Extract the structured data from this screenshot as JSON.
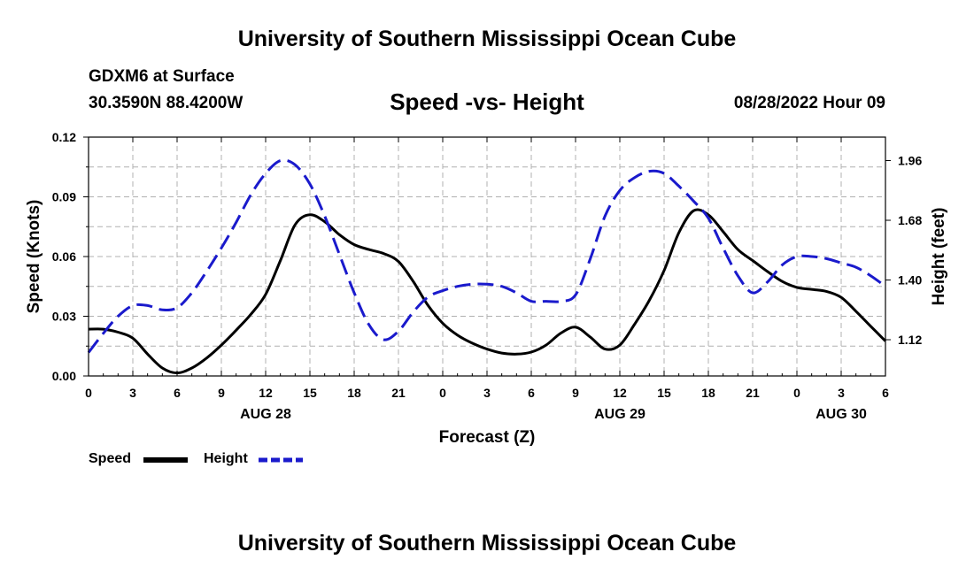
{
  "header": {
    "title": "University of Southern Mississippi Ocean Cube",
    "station": "GDXM6 at Surface",
    "coords": "30.3590N   88.4200W",
    "chart_title": "Speed -vs- Height",
    "datetime": "08/28/2022 Hour 09"
  },
  "footer": {
    "title": "University of Southern Mississippi Ocean Cube"
  },
  "legend": {
    "speed": "Speed",
    "height": "Height"
  },
  "colors": {
    "speed": "#000000",
    "height": "#1a1acc",
    "grid": "#b0b0b0"
  },
  "chart_data": {
    "type": "line",
    "title": "Speed -vs- Height",
    "xlabel": "Forecast (Z)",
    "ylabel": "Speed (Knots)",
    "y2label": "Height (feet)",
    "x_range_hours": [
      0,
      54
    ],
    "x_ticks": [
      {
        "h": 0,
        "label": "0"
      },
      {
        "h": 3,
        "label": "3"
      },
      {
        "h": 6,
        "label": "6"
      },
      {
        "h": 9,
        "label": "9"
      },
      {
        "h": 12,
        "label": "12"
      },
      {
        "h": 15,
        "label": "15"
      },
      {
        "h": 18,
        "label": "18"
      },
      {
        "h": 21,
        "label": "21"
      },
      {
        "h": 24,
        "label": "0"
      },
      {
        "h": 27,
        "label": "3"
      },
      {
        "h": 30,
        "label": "6"
      },
      {
        "h": 33,
        "label": "9"
      },
      {
        "h": 36,
        "label": "12"
      },
      {
        "h": 39,
        "label": "15"
      },
      {
        "h": 42,
        "label": "18"
      },
      {
        "h": 45,
        "label": "21"
      },
      {
        "h": 48,
        "label": "0"
      },
      {
        "h": 51,
        "label": "3"
      },
      {
        "h": 54,
        "label": "6"
      }
    ],
    "day_labels": [
      {
        "h": 12,
        "label": "AUG 28"
      },
      {
        "h": 36,
        "label": "AUG 29"
      },
      {
        "h": 51,
        "label": "AUG 30"
      }
    ],
    "y_left": {
      "min": 0,
      "max": 0.12,
      "ticks": [
        0.0,
        0.03,
        0.06,
        0.09,
        0.12
      ],
      "tick_labels": [
        "0.00",
        "0.03",
        "0.06",
        "0.09",
        "0.12"
      ]
    },
    "y_right": {
      "min": 0.95,
      "max": 2.07,
      "ticks": [
        1.12,
        1.4,
        1.68,
        1.96
      ],
      "tick_labels": [
        "1.12",
        "1.40",
        "1.68",
        "1.96"
      ]
    },
    "series": [
      {
        "name": "Speed",
        "axis": "left",
        "style": "solid",
        "hours": [
          0,
          1,
          2,
          3,
          4,
          5,
          6,
          7,
          8,
          9,
          10,
          11,
          12,
          13,
          14,
          15,
          16,
          17,
          18,
          19,
          20,
          21,
          22,
          23,
          24,
          25,
          26,
          27,
          28,
          29,
          30,
          31,
          32,
          33,
          34,
          35,
          36,
          37,
          38,
          39,
          40,
          41,
          42,
          43,
          44,
          45,
          46,
          47,
          48,
          49,
          50,
          51,
          52,
          53,
          54
        ],
        "values": [
          0.0235,
          0.0235,
          0.022,
          0.019,
          0.011,
          0.004,
          0.0015,
          0.004,
          0.009,
          0.0155,
          0.023,
          0.031,
          0.041,
          0.058,
          0.076,
          0.081,
          0.0775,
          0.071,
          0.066,
          0.0635,
          0.0615,
          0.0575,
          0.0475,
          0.0355,
          0.0265,
          0.0205,
          0.0165,
          0.0135,
          0.0115,
          0.011,
          0.012,
          0.0155,
          0.0215,
          0.0245,
          0.0195,
          0.0135,
          0.0155,
          0.026,
          0.038,
          0.053,
          0.072,
          0.083,
          0.081,
          0.0725,
          0.0635,
          0.058,
          0.0525,
          0.0475,
          0.0445,
          0.0435,
          0.0425,
          0.0395,
          0.0325,
          0.025,
          0.0175
        ]
      },
      {
        "name": "Height",
        "axis": "right",
        "style": "dashed",
        "hours": [
          0,
          1,
          2,
          3,
          4,
          5,
          6,
          7,
          8,
          9,
          10,
          11,
          12,
          13,
          14,
          15,
          16,
          17,
          18,
          19,
          20,
          21,
          22,
          23,
          24,
          25,
          26,
          27,
          28,
          29,
          30,
          31,
          32,
          33,
          34,
          35,
          36,
          37,
          38,
          39,
          40,
          41,
          42,
          43,
          44,
          45,
          46,
          47,
          48,
          49,
          50,
          51,
          52,
          53,
          54
        ],
        "values": [
          1.06,
          1.15,
          1.23,
          1.28,
          1.28,
          1.26,
          1.27,
          1.34,
          1.44,
          1.55,
          1.67,
          1.8,
          1.9,
          1.96,
          1.94,
          1.85,
          1.7,
          1.52,
          1.34,
          1.19,
          1.12,
          1.16,
          1.25,
          1.32,
          1.35,
          1.37,
          1.38,
          1.38,
          1.37,
          1.34,
          1.3,
          1.3,
          1.3,
          1.33,
          1.5,
          1.7,
          1.82,
          1.88,
          1.91,
          1.9,
          1.84,
          1.77,
          1.69,
          1.55,
          1.42,
          1.34,
          1.39,
          1.47,
          1.51,
          1.51,
          1.5,
          1.48,
          1.46,
          1.42,
          1.37
        ]
      }
    ]
  }
}
